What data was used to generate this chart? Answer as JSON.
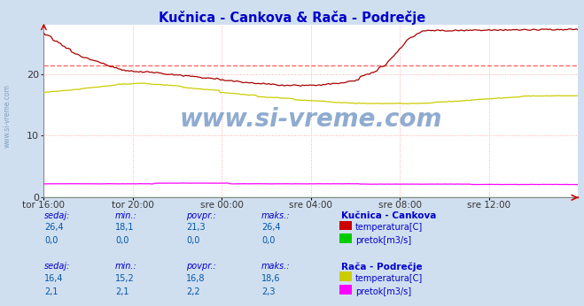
{
  "title": "Kučnica - Cankova & Rača - Podrečje",
  "title_color": "#0000cc",
  "bg_color": "#d0dff0",
  "plot_bg_color": "#ffffff",
  "grid_color": "#ffaaaa",
  "grid_style": "dotted",
  "watermark": "www.si-vreme.com",
  "watermark_color": "#3366aa",
  "ylim": [
    0,
    28
  ],
  "yticks": [
    0,
    10,
    20
  ],
  "xlabel_ticks": [
    "tor 16:00",
    "tor 20:00",
    "sre 00:00",
    "sre 04:00",
    "sre 08:00",
    "sre 12:00"
  ],
  "n_points": 288,
  "avg_line_value": 21.3,
  "avg_line_color": "#ff6666",
  "kucnica_temp_color": "#aa0000",
  "kucnica_pretok_color": "#00bb00",
  "raca_temp_color": "#cccc00",
  "raca_pretok_color": "#ff00ff",
  "legend_text_color": "#0000cc",
  "table_value_color": "#0055aa",
  "footer_bg": "#b8cce4",
  "footer_items": [
    {
      "label": "Kučnica - Cankova",
      "series": [
        {
          "name": "temperatura[C]",
          "color": "#cc0000",
          "values": [
            "26,4",
            "18,1",
            "21,3",
            "26,4"
          ]
        },
        {
          "name": "pretok[m3/s]",
          "color": "#00cc00",
          "values": [
            "0,0",
            "0,0",
            "0,0",
            "0,0"
          ]
        }
      ]
    },
    {
      "label": "Rača - Podrečje",
      "series": [
        {
          "name": "temperatura[C]",
          "color": "#cccc00",
          "values": [
            "16,4",
            "15,2",
            "16,8",
            "18,6"
          ]
        },
        {
          "name": "pretok[m3/s]",
          "color": "#ff00ff",
          "values": [
            "2,1",
            "2,1",
            "2,2",
            "2,3"
          ]
        }
      ]
    }
  ]
}
